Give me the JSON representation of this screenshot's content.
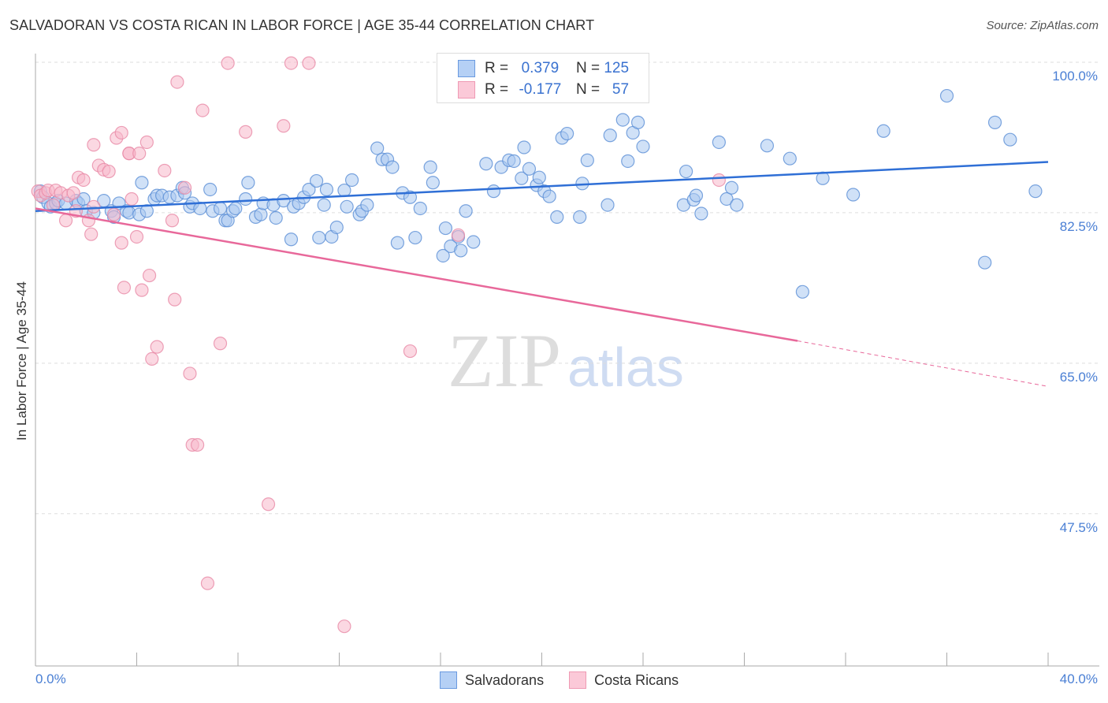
{
  "chart_data": {
    "type": "scatter",
    "title": "SALVADORAN VS COSTA RICAN IN LABOR FORCE | AGE 35-44 CORRELATION CHART",
    "source": "Source: ZipAtlas.com",
    "xlabel": "",
    "ylabel": "In Labor Force | Age 35-44",
    "xlim": [
      0,
      40
    ],
    "ylim": [
      30.3,
      101.5
    ],
    "x_tick_labels": [
      "0.0%",
      "40.0%"
    ],
    "y_ticks": [
      100,
      82.5,
      65,
      47.5
    ],
    "y_tick_labels": [
      "100.0%",
      "82.5%",
      "65.0%",
      "47.5%"
    ],
    "grid": "horizontal-dashed",
    "watermark": "ZIPatlas",
    "legend": {
      "placement": "top-center",
      "rows": [
        {
          "r_label": "R =",
          "r": "0.379",
          "n_label": "N =",
          "n": "125"
        },
        {
          "r_label": "R =",
          "r": "-0.177",
          "n_label": "N =",
          "n": "57"
        }
      ]
    },
    "bottom_legend": [
      "Salvadorans",
      "Costa Ricans"
    ],
    "series": [
      {
        "name": "Salvadorans",
        "color": "#5b8fd6",
        "fill": "#a9c8f0",
        "trend": {
          "x": [
            0,
            40
          ],
          "y": [
            82.7,
            88.4
          ]
        },
        "points": [
          [
            0.2,
            85.0
          ],
          [
            0.3,
            84.3
          ],
          [
            0.5,
            83.6
          ],
          [
            0.6,
            83.2
          ],
          [
            0.8,
            83.6
          ],
          [
            0.9,
            83.9
          ],
          [
            1.2,
            83.6
          ],
          [
            1.6,
            83.9
          ],
          [
            1.7,
            83.6
          ],
          [
            1.9,
            84.1
          ],
          [
            2.0,
            82.7
          ],
          [
            2.3,
            82.5
          ],
          [
            2.7,
            83.9
          ],
          [
            3.0,
            82.7
          ],
          [
            3.1,
            82.0
          ],
          [
            3.3,
            83.6
          ],
          [
            3.6,
            82.7
          ],
          [
            3.7,
            82.5
          ],
          [
            4.1,
            82.3
          ],
          [
            4.2,
            86.0
          ],
          [
            4.4,
            82.7
          ],
          [
            4.7,
            84.1
          ],
          [
            4.8,
            84.5
          ],
          [
            5.0,
            84.5
          ],
          [
            5.3,
            84.3
          ],
          [
            5.6,
            84.5
          ],
          [
            5.8,
            85.4
          ],
          [
            5.9,
            84.8
          ],
          [
            6.1,
            83.2
          ],
          [
            6.2,
            83.6
          ],
          [
            6.5,
            83.0
          ],
          [
            6.9,
            85.2
          ],
          [
            7.0,
            82.7
          ],
          [
            7.3,
            83.0
          ],
          [
            7.5,
            81.6
          ],
          [
            7.6,
            81.6
          ],
          [
            7.8,
            82.7
          ],
          [
            7.9,
            83.0
          ],
          [
            8.4,
            86.0
          ],
          [
            8.3,
            84.1
          ],
          [
            8.7,
            82.0
          ],
          [
            8.9,
            82.3
          ],
          [
            9.0,
            83.6
          ],
          [
            9.4,
            83.4
          ],
          [
            9.5,
            81.9
          ],
          [
            9.8,
            83.9
          ],
          [
            10.1,
            79.4
          ],
          [
            10.2,
            83.2
          ],
          [
            10.4,
            83.6
          ],
          [
            10.6,
            84.3
          ],
          [
            10.8,
            85.2
          ],
          [
            11.1,
            86.2
          ],
          [
            11.2,
            79.6
          ],
          [
            11.4,
            83.4
          ],
          [
            11.5,
            85.2
          ],
          [
            11.7,
            79.7
          ],
          [
            11.9,
            80.8
          ],
          [
            12.2,
            85.1
          ],
          [
            12.3,
            83.2
          ],
          [
            12.5,
            86.3
          ],
          [
            12.8,
            82.3
          ],
          [
            12.9,
            82.7
          ],
          [
            13.1,
            83.4
          ],
          [
            13.5,
            90.0
          ],
          [
            13.7,
            88.7
          ],
          [
            13.9,
            88.7
          ],
          [
            14.1,
            87.8
          ],
          [
            14.3,
            79.0
          ],
          [
            14.5,
            84.8
          ],
          [
            14.8,
            84.3
          ],
          [
            15.0,
            79.6
          ],
          [
            15.2,
            83.0
          ],
          [
            15.6,
            87.8
          ],
          [
            15.7,
            86.0
          ],
          [
            16.1,
            77.5
          ],
          [
            16.2,
            80.7
          ],
          [
            16.4,
            78.6
          ],
          [
            16.7,
            79.7
          ],
          [
            16.8,
            78.1
          ],
          [
            17.0,
            82.7
          ],
          [
            17.3,
            79.1
          ],
          [
            17.8,
            88.2
          ],
          [
            18.1,
            85.0
          ],
          [
            18.4,
            87.8
          ],
          [
            18.7,
            88.6
          ],
          [
            18.9,
            88.5
          ],
          [
            19.2,
            86.5
          ],
          [
            19.3,
            90.1
          ],
          [
            19.5,
            87.6
          ],
          [
            19.8,
            85.7
          ],
          [
            19.9,
            86.6
          ],
          [
            20.1,
            85.0
          ],
          [
            20.3,
            84.4
          ],
          [
            20.6,
            82.0
          ],
          [
            20.8,
            91.2
          ],
          [
            21.0,
            91.7
          ],
          [
            21.5,
            82.0
          ],
          [
            21.6,
            85.9
          ],
          [
            21.8,
            88.6
          ],
          [
            22.6,
            83.4
          ],
          [
            22.7,
            91.5
          ],
          [
            23.2,
            93.3
          ],
          [
            23.4,
            88.5
          ],
          [
            23.6,
            91.8
          ],
          [
            23.8,
            93.0
          ],
          [
            24.0,
            90.2
          ],
          [
            25.6,
            83.4
          ],
          [
            25.7,
            87.3
          ],
          [
            26.0,
            84.0
          ],
          [
            26.1,
            84.5
          ],
          [
            26.3,
            82.4
          ],
          [
            27.0,
            90.7
          ],
          [
            27.3,
            84.1
          ],
          [
            27.5,
            85.4
          ],
          [
            27.7,
            83.4
          ],
          [
            28.9,
            90.3
          ],
          [
            29.8,
            88.8
          ],
          [
            30.3,
            73.3
          ],
          [
            31.1,
            86.5
          ],
          [
            32.3,
            84.6
          ],
          [
            33.5,
            92.0
          ],
          [
            36.0,
            96.1
          ],
          [
            37.5,
            76.7
          ],
          [
            37.9,
            93.0
          ],
          [
            38.5,
            91.0
          ],
          [
            39.5,
            85.0
          ]
        ]
      },
      {
        "name": "Costa Ricans",
        "color": "#e88aa6",
        "fill": "#f7b8cb",
        "trend": {
          "x": [
            0,
            30.1,
            40
          ],
          "y": [
            83.0,
            67.6,
            62.3
          ]
        },
        "points": [
          [
            0.1,
            85.0
          ],
          [
            0.2,
            84.5
          ],
          [
            0.4,
            84.8
          ],
          [
            0.5,
            85.1
          ],
          [
            0.7,
            83.4
          ],
          [
            0.8,
            85.1
          ],
          [
            1.0,
            84.8
          ],
          [
            1.2,
            81.6
          ],
          [
            1.3,
            84.5
          ],
          [
            1.5,
            84.8
          ],
          [
            1.6,
            82.7
          ],
          [
            1.7,
            86.6
          ],
          [
            1.9,
            86.3
          ],
          [
            2.1,
            81.6
          ],
          [
            2.2,
            80.0
          ],
          [
            2.3,
            83.2
          ],
          [
            2.3,
            90.4
          ],
          [
            2.5,
            88.0
          ],
          [
            2.7,
            87.5
          ],
          [
            2.9,
            87.3
          ],
          [
            3.1,
            82.3
          ],
          [
            3.2,
            91.2
          ],
          [
            3.4,
            79.0
          ],
          [
            3.4,
            91.8
          ],
          [
            3.5,
            73.8
          ],
          [
            3.7,
            89.4
          ],
          [
            3.7,
            89.4
          ],
          [
            3.8,
            84.1
          ],
          [
            4.0,
            79.7
          ],
          [
            4.1,
            89.4
          ],
          [
            4.2,
            73.5
          ],
          [
            4.4,
            90.7
          ],
          [
            4.5,
            75.2
          ],
          [
            4.6,
            65.5
          ],
          [
            4.8,
            66.9
          ],
          [
            5.1,
            87.4
          ],
          [
            5.4,
            81.6
          ],
          [
            5.5,
            72.4
          ],
          [
            5.6,
            97.7
          ],
          [
            5.9,
            85.4
          ],
          [
            6.1,
            63.8
          ],
          [
            6.2,
            55.5
          ],
          [
            6.4,
            55.5
          ],
          [
            6.6,
            94.4
          ],
          [
            6.8,
            39.4
          ],
          [
            7.3,
            67.3
          ],
          [
            7.6,
            99.9
          ],
          [
            8.3,
            91.9
          ],
          [
            9.2,
            48.6
          ],
          [
            9.8,
            92.6
          ],
          [
            10.1,
            99.9
          ],
          [
            10.8,
            99.9
          ],
          [
            12.2,
            34.4
          ],
          [
            14.8,
            66.4
          ],
          [
            16.7,
            79.9
          ],
          [
            27.0,
            86.3
          ]
        ]
      }
    ]
  }
}
